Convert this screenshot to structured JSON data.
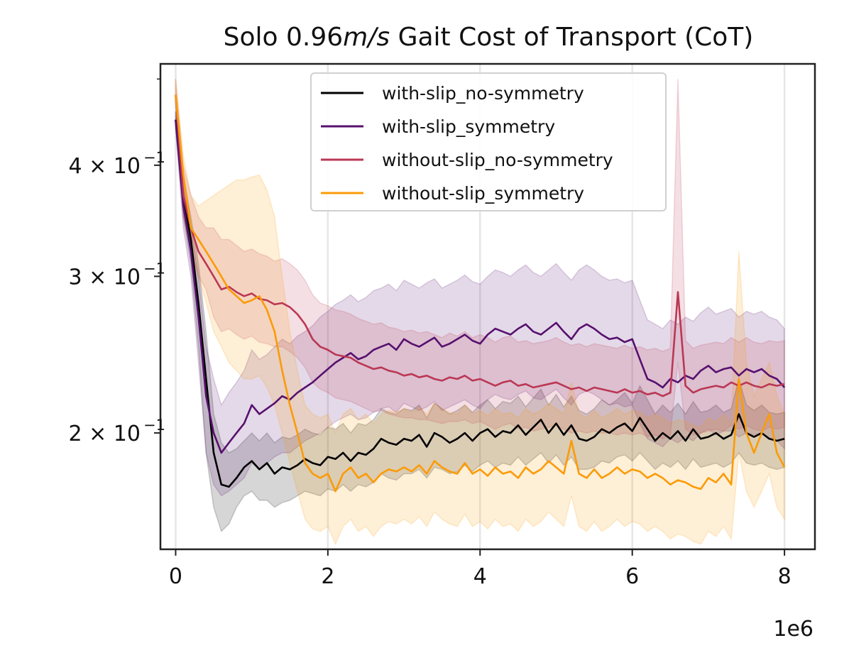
{
  "chart_data": {
    "type": "line",
    "title_parts": [
      "Solo 0.96",
      "m/s",
      " Gait Cost of Transport (CoT)"
    ],
    "title": "Solo 0.96m/s Gait Cost of Transport (CoT)",
    "xlabel": "",
    "ylabel": "",
    "x_offset_label": "1e6",
    "x_scale": "linear",
    "y_scale": "log",
    "xlim": [
      -0.2,
      8.4
    ],
    "ylim": [
      0.148,
      0.52
    ],
    "x_ticks": [
      0,
      2,
      4,
      6,
      8
    ],
    "x_tick_labels": [
      "0",
      "2",
      "4",
      "6",
      "8"
    ],
    "y_ticks": [
      0.2,
      0.3,
      0.4
    ],
    "y_tick_labels": [
      {
        "base": "2 × 10",
        "exp": "−1"
      },
      {
        "base": "3 × 10",
        "exp": "−1"
      },
      {
        "base": "4 × 10",
        "exp": "−1"
      }
    ],
    "y_minor_ticks": [
      0.5
    ],
    "grid": "x-major",
    "legend_position": "upper center",
    "x": [
      0,
      0.1,
      0.2,
      0.3,
      0.4,
      0.5,
      0.6,
      0.7,
      0.8,
      0.9,
      1.0,
      1.1,
      1.2,
      1.3,
      1.4,
      1.5,
      1.6,
      1.7,
      1.8,
      1.9,
      2.0,
      2.1,
      2.2,
      2.3,
      2.4,
      2.5,
      2.6,
      2.7,
      2.8,
      2.9,
      3.0,
      3.1,
      3.2,
      3.3,
      3.4,
      3.5,
      3.6,
      3.7,
      3.8,
      3.9,
      4.0,
      4.1,
      4.2,
      4.3,
      4.4,
      4.5,
      4.6,
      4.7,
      4.8,
      4.9,
      5.0,
      5.1,
      5.2,
      5.3,
      5.4,
      5.5,
      5.6,
      5.7,
      5.8,
      5.9,
      6.0,
      6.1,
      6.2,
      6.3,
      6.4,
      6.5,
      6.6,
      6.7,
      6.8,
      6.9,
      7.0,
      7.1,
      7.2,
      7.3,
      7.4,
      7.5,
      7.6,
      7.7,
      7.8,
      7.9,
      8.0
    ],
    "series": [
      {
        "name": "with-slip_no-symmetry",
        "color": "#000000",
        "values": [
          0.45,
          0.37,
          0.33,
          0.28,
          0.23,
          0.19,
          0.175,
          0.174,
          0.178,
          0.183,
          0.186,
          0.182,
          0.185,
          0.18,
          0.183,
          0.182,
          0.184,
          0.187,
          0.185,
          0.184,
          0.188,
          0.187,
          0.19,
          0.186,
          0.19,
          0.189,
          0.192,
          0.197,
          0.195,
          0.194,
          0.197,
          0.196,
          0.199,
          0.193,
          0.2,
          0.198,
          0.195,
          0.197,
          0.2,
          0.196,
          0.2,
          0.202,
          0.198,
          0.201,
          0.2,
          0.204,
          0.199,
          0.203,
          0.207,
          0.2,
          0.205,
          0.199,
          0.204,
          0.197,
          0.196,
          0.198,
          0.202,
          0.2,
          0.203,
          0.205,
          0.201,
          0.208,
          0.202,
          0.196,
          0.2,
          0.197,
          0.201,
          0.196,
          0.202,
          0.197,
          0.198,
          0.2,
          0.197,
          0.199,
          0.21,
          0.2,
          0.198,
          0.2,
          0.197,
          0.196,
          0.197
        ],
        "band_lower": [
          0.44,
          0.35,
          0.31,
          0.25,
          0.19,
          0.165,
          0.155,
          0.158,
          0.165,
          0.17,
          0.172,
          0.168,
          0.168,
          0.165,
          0.167,
          0.168,
          0.17,
          0.172,
          0.171,
          0.17,
          0.173,
          0.172,
          0.175,
          0.172,
          0.175,
          0.174,
          0.176,
          0.18,
          0.178,
          0.177,
          0.18,
          0.18,
          0.182,
          0.178,
          0.183,
          0.182,
          0.18,
          0.181,
          0.184,
          0.181,
          0.184,
          0.186,
          0.183,
          0.185,
          0.184,
          0.188,
          0.184,
          0.187,
          0.19,
          0.185,
          0.189,
          0.184,
          0.188,
          0.182,
          0.182,
          0.183,
          0.186,
          0.185,
          0.188,
          0.189,
          0.186,
          0.19,
          0.186,
          0.182,
          0.185,
          0.183,
          0.186,
          0.182,
          0.187,
          0.183,
          0.184,
          0.185,
          0.183,
          0.185,
          0.19,
          0.185,
          0.184,
          0.185,
          0.183,
          0.182,
          0.183
        ],
        "band_upper": [
          0.46,
          0.39,
          0.35,
          0.31,
          0.26,
          0.21,
          0.195,
          0.19,
          0.192,
          0.196,
          0.2,
          0.196,
          0.2,
          0.195,
          0.198,
          0.197,
          0.199,
          0.202,
          0.2,
          0.199,
          0.203,
          0.202,
          0.205,
          0.2,
          0.205,
          0.204,
          0.207,
          0.213,
          0.211,
          0.21,
          0.213,
          0.212,
          0.215,
          0.208,
          0.216,
          0.213,
          0.21,
          0.212,
          0.215,
          0.211,
          0.215,
          0.218,
          0.213,
          0.217,
          0.216,
          0.22,
          0.214,
          0.219,
          0.224,
          0.215,
          0.221,
          0.214,
          0.22,
          0.212,
          0.21,
          0.213,
          0.218,
          0.215,
          0.218,
          0.222,
          0.216,
          0.226,
          0.218,
          0.21,
          0.215,
          0.211,
          0.216,
          0.21,
          0.217,
          0.211,
          0.212,
          0.215,
          0.211,
          0.213,
          0.23,
          0.215,
          0.212,
          0.215,
          0.211,
          0.21,
          0.211
        ]
      },
      {
        "name": "with-slip_symmetry",
        "color": "#57106e",
        "values": [
          0.45,
          0.36,
          0.32,
          0.27,
          0.22,
          0.2,
          0.19,
          0.195,
          0.2,
          0.205,
          0.215,
          0.21,
          0.213,
          0.216,
          0.22,
          0.218,
          0.222,
          0.225,
          0.228,
          0.232,
          0.236,
          0.24,
          0.243,
          0.246,
          0.242,
          0.244,
          0.248,
          0.25,
          0.252,
          0.248,
          0.255,
          0.252,
          0.25,
          0.253,
          0.256,
          0.25,
          0.252,
          0.255,
          0.258,
          0.254,
          0.252,
          0.258,
          0.262,
          0.26,
          0.258,
          0.262,
          0.265,
          0.26,
          0.258,
          0.262,
          0.266,
          0.26,
          0.255,
          0.262,
          0.265,
          0.262,
          0.258,
          0.255,
          0.256,
          0.253,
          0.255,
          0.242,
          0.23,
          0.228,
          0.225,
          0.23,
          0.228,
          0.232,
          0.23,
          0.235,
          0.238,
          0.234,
          0.236,
          0.237,
          0.232,
          0.236,
          0.234,
          0.236,
          0.232,
          0.23,
          0.225
        ],
        "band_lower": [
          0.44,
          0.34,
          0.3,
          0.24,
          0.19,
          0.175,
          0.17,
          0.172,
          0.175,
          0.178,
          0.185,
          0.182,
          0.185,
          0.188,
          0.19,
          0.19,
          0.193,
          0.196,
          0.198,
          0.2,
          0.203,
          0.206,
          0.208,
          0.21,
          0.207,
          0.208,
          0.211,
          0.213,
          0.214,
          0.211,
          0.216,
          0.214,
          0.212,
          0.214,
          0.217,
          0.212,
          0.214,
          0.216,
          0.218,
          0.215,
          0.213,
          0.218,
          0.221,
          0.219,
          0.218,
          0.221,
          0.223,
          0.219,
          0.218,
          0.221,
          0.224,
          0.219,
          0.215,
          0.221,
          0.223,
          0.221,
          0.218,
          0.215,
          0.216,
          0.214,
          0.215,
          0.205,
          0.197,
          0.195,
          0.193,
          0.197,
          0.195,
          0.198,
          0.196,
          0.2,
          0.202,
          0.199,
          0.201,
          0.201,
          0.198,
          0.2,
          0.199,
          0.2,
          0.197,
          0.196,
          0.192
        ],
        "band_upper": [
          0.46,
          0.38,
          0.34,
          0.3,
          0.25,
          0.23,
          0.215,
          0.222,
          0.228,
          0.235,
          0.248,
          0.242,
          0.245,
          0.25,
          0.255,
          0.252,
          0.257,
          0.26,
          0.264,
          0.27,
          0.274,
          0.279,
          0.282,
          0.286,
          0.281,
          0.284,
          0.289,
          0.291,
          0.294,
          0.289,
          0.297,
          0.294,
          0.291,
          0.295,
          0.298,
          0.291,
          0.294,
          0.297,
          0.301,
          0.296,
          0.294,
          0.3,
          0.305,
          0.303,
          0.3,
          0.305,
          0.309,
          0.303,
          0.3,
          0.305,
          0.31,
          0.303,
          0.297,
          0.305,
          0.309,
          0.305,
          0.3,
          0.297,
          0.298,
          0.295,
          0.297,
          0.282,
          0.268,
          0.265,
          0.262,
          0.268,
          0.265,
          0.27,
          0.267,
          0.273,
          0.277,
          0.272,
          0.274,
          0.276,
          0.27,
          0.274,
          0.272,
          0.274,
          0.27,
          0.268,
          0.262
        ]
      },
      {
        "name": "without-slip_no-symmetry",
        "color": "#bb3754",
        "values": [
          0.48,
          0.37,
          0.34,
          0.32,
          0.31,
          0.3,
          0.29,
          0.292,
          0.288,
          0.285,
          0.287,
          0.283,
          0.282,
          0.279,
          0.28,
          0.277,
          0.272,
          0.265,
          0.255,
          0.25,
          0.248,
          0.245,
          0.244,
          0.243,
          0.24,
          0.238,
          0.236,
          0.237,
          0.235,
          0.234,
          0.232,
          0.233,
          0.231,
          0.232,
          0.23,
          0.229,
          0.231,
          0.23,
          0.232,
          0.229,
          0.23,
          0.228,
          0.226,
          0.228,
          0.229,
          0.226,
          0.227,
          0.225,
          0.226,
          0.227,
          0.228,
          0.226,
          0.224,
          0.225,
          0.223,
          0.225,
          0.224,
          0.223,
          0.222,
          0.224,
          0.222,
          0.223,
          0.221,
          0.222,
          0.22,
          0.222,
          0.288,
          0.226,
          0.222,
          0.224,
          0.225,
          0.226,
          0.225,
          0.228,
          0.226,
          0.228,
          0.226,
          0.225,
          0.227,
          0.226,
          0.227
        ],
        "band_lower": [
          0.47,
          0.35,
          0.32,
          0.3,
          0.29,
          0.27,
          0.26,
          0.262,
          0.258,
          0.255,
          0.257,
          0.253,
          0.252,
          0.25,
          0.25,
          0.247,
          0.243,
          0.237,
          0.228,
          0.224,
          0.222,
          0.219,
          0.218,
          0.217,
          0.215,
          0.213,
          0.211,
          0.212,
          0.21,
          0.209,
          0.208,
          0.208,
          0.207,
          0.207,
          0.206,
          0.205,
          0.206,
          0.206,
          0.207,
          0.205,
          0.206,
          0.204,
          0.202,
          0.204,
          0.205,
          0.202,
          0.203,
          0.201,
          0.202,
          0.203,
          0.204,
          0.202,
          0.2,
          0.201,
          0.2,
          0.201,
          0.2,
          0.2,
          0.199,
          0.2,
          0.199,
          0.2,
          0.198,
          0.199,
          0.197,
          0.199,
          0.24,
          0.202,
          0.199,
          0.2,
          0.201,
          0.202,
          0.201,
          0.204,
          0.202,
          0.204,
          0.202,
          0.201,
          0.203,
          0.202,
          0.203
        ],
        "band_upper": [
          0.5,
          0.4,
          0.37,
          0.35,
          0.34,
          0.34,
          0.33,
          0.33,
          0.325,
          0.32,
          0.322,
          0.318,
          0.316,
          0.312,
          0.314,
          0.31,
          0.305,
          0.297,
          0.286,
          0.28,
          0.278,
          0.275,
          0.274,
          0.272,
          0.269,
          0.267,
          0.265,
          0.266,
          0.263,
          0.262,
          0.26,
          0.261,
          0.259,
          0.26,
          0.258,
          0.256,
          0.259,
          0.257,
          0.26,
          0.256,
          0.258,
          0.256,
          0.253,
          0.256,
          0.257,
          0.253,
          0.254,
          0.252,
          0.253,
          0.254,
          0.256,
          0.253,
          0.251,
          0.252,
          0.25,
          0.252,
          0.251,
          0.25,
          0.249,
          0.251,
          0.249,
          0.25,
          0.248,
          0.249,
          0.247,
          0.249,
          0.5,
          0.254,
          0.249,
          0.251,
          0.252,
          0.253,
          0.252,
          0.256,
          0.253,
          0.256,
          0.253,
          0.252,
          0.254,
          0.253,
          0.254
        ]
      },
      {
        "name": "without-slip_symmetry",
        "color": "#fb9b06",
        "values": [
          0.48,
          0.39,
          0.34,
          0.33,
          0.32,
          0.31,
          0.3,
          0.29,
          0.285,
          0.28,
          0.282,
          0.285,
          0.275,
          0.26,
          0.235,
          0.215,
          0.2,
          0.185,
          0.18,
          0.178,
          0.18,
          0.172,
          0.18,
          0.183,
          0.178,
          0.18,
          0.176,
          0.18,
          0.182,
          0.181,
          0.183,
          0.181,
          0.184,
          0.18,
          0.186,
          0.183,
          0.181,
          0.18,
          0.185,
          0.18,
          0.182,
          0.179,
          0.183,
          0.18,
          0.181,
          0.178,
          0.183,
          0.18,
          0.182,
          0.186,
          0.183,
          0.18,
          0.196,
          0.18,
          0.178,
          0.182,
          0.178,
          0.18,
          0.183,
          0.18,
          0.182,
          0.181,
          0.178,
          0.18,
          0.178,
          0.175,
          0.177,
          0.176,
          0.174,
          0.173,
          0.178,
          0.176,
          0.18,
          0.175,
          0.23,
          0.2,
          0.19,
          0.2,
          0.21,
          0.19,
          0.183
        ],
        "band_lower": [
          0.47,
          0.37,
          0.32,
          0.3,
          0.28,
          0.26,
          0.25,
          0.24,
          0.235,
          0.23,
          0.23,
          0.232,
          0.225,
          0.215,
          0.2,
          0.185,
          0.172,
          0.16,
          0.156,
          0.155,
          0.157,
          0.15,
          0.157,
          0.16,
          0.155,
          0.157,
          0.153,
          0.157,
          0.159,
          0.158,
          0.16,
          0.158,
          0.161,
          0.157,
          0.163,
          0.16,
          0.158,
          0.157,
          0.162,
          0.157,
          0.159,
          0.156,
          0.16,
          0.157,
          0.158,
          0.155,
          0.16,
          0.157,
          0.159,
          0.163,
          0.16,
          0.157,
          0.17,
          0.157,
          0.155,
          0.159,
          0.155,
          0.157,
          0.16,
          0.157,
          0.159,
          0.158,
          0.155,
          0.157,
          0.155,
          0.152,
          0.154,
          0.153,
          0.151,
          0.15,
          0.155,
          0.153,
          0.157,
          0.152,
          0.19,
          0.172,
          0.165,
          0.172,
          0.18,
          0.165,
          0.16
        ],
        "band_upper": [
          0.5,
          0.41,
          0.37,
          0.36,
          0.365,
          0.37,
          0.375,
          0.38,
          0.385,
          0.385,
          0.388,
          0.39,
          0.375,
          0.35,
          0.3,
          0.26,
          0.235,
          0.215,
          0.21,
          0.208,
          0.21,
          0.2,
          0.21,
          0.213,
          0.207,
          0.21,
          0.205,
          0.21,
          0.212,
          0.211,
          0.213,
          0.211,
          0.214,
          0.21,
          0.216,
          0.213,
          0.211,
          0.21,
          0.215,
          0.21,
          0.212,
          0.209,
          0.213,
          0.21,
          0.211,
          0.208,
          0.213,
          0.21,
          0.212,
          0.216,
          0.213,
          0.21,
          0.228,
          0.21,
          0.208,
          0.212,
          0.208,
          0.21,
          0.213,
          0.21,
          0.212,
          0.211,
          0.208,
          0.21,
          0.208,
          0.205,
          0.207,
          0.206,
          0.204,
          0.203,
          0.208,
          0.206,
          0.21,
          0.205,
          0.32,
          0.24,
          0.22,
          0.23,
          0.24,
          0.22,
          0.21
        ]
      }
    ]
  }
}
